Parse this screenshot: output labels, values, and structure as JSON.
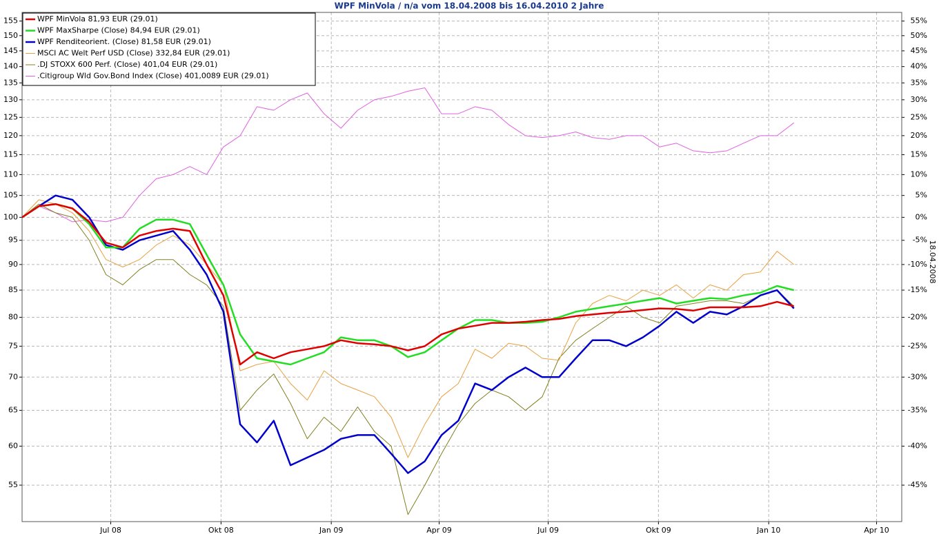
{
  "chart_data": {
    "type": "line",
    "title": "WPF MinVola / n/a vom 18.04.2008 bis 16.04.2010 2 Jahre",
    "y2label": "18.04.2008",
    "ylog": true,
    "grid": true,
    "legend": "upper left",
    "xlim": [
      0,
      734
    ],
    "xticks": [
      {
        "value": 74,
        "label": "Jul 08"
      },
      {
        "value": 166,
        "label": "Okt 08"
      },
      {
        "value": 258,
        "label": "Jan 09"
      },
      {
        "value": 348,
        "label": "Apr 09"
      },
      {
        "value": 439,
        "label": "Jul 09"
      },
      {
        "value": 531,
        "label": "Okt 09"
      },
      {
        "value": 623,
        "label": "Jan 10"
      },
      {
        "value": 713,
        "label": "Apr 10"
      }
    ],
    "ylim": [
      50.7,
      158
    ],
    "yticks": [
      55,
      60,
      65,
      70,
      75,
      80,
      85,
      90,
      95,
      100,
      105,
      110,
      115,
      120,
      125,
      130,
      135,
      140,
      145,
      150,
      155
    ],
    "y2lim": [
      -49.3,
      58
    ],
    "y2ticks": [
      {
        "value": -45,
        "label": "-45%"
      },
      {
        "value": -40,
        "label": "-40%"
      },
      {
        "value": -35,
        "label": "-35%"
      },
      {
        "value": -30,
        "label": "-30%"
      },
      {
        "value": -25,
        "label": "-25%"
      },
      {
        "value": -20,
        "label": "-20%"
      },
      {
        "value": -15,
        "label": "-15%"
      },
      {
        "value": -10,
        "label": "-10%"
      },
      {
        "value": -5,
        "label": "-5%"
      },
      {
        "value": 0,
        "label": "0%"
      },
      {
        "value": 5,
        "label": "5%"
      },
      {
        "value": 10,
        "label": "10%"
      },
      {
        "value": 15,
        "label": "15%"
      },
      {
        "value": 20,
        "label": "20%"
      },
      {
        "value": 25,
        "label": "25%"
      },
      {
        "value": 30,
        "label": "30%"
      },
      {
        "value": 35,
        "label": "35%"
      },
      {
        "value": 40,
        "label": "40%"
      },
      {
        "value": 45,
        "label": "45%"
      },
      {
        "value": 50,
        "label": "50%"
      },
      {
        "value": 55,
        "label": "55%"
      }
    ],
    "x": [
      0,
      14,
      28,
      42,
      56,
      70,
      84,
      98,
      112,
      126,
      140,
      154,
      168,
      182,
      196,
      210,
      224,
      238,
      252,
      266,
      280,
      294,
      308,
      322,
      336,
      350,
      364,
      378,
      392,
      406,
      420,
      434,
      448,
      462,
      476,
      490,
      504,
      518,
      532,
      546,
      560,
      574,
      588,
      602,
      616,
      630,
      644
    ],
    "series": [
      {
        "name": "WPF MinVola 81,93 EUR (29.01)",
        "color": "#e00000",
        "width": 2.5,
        "values": [
          100,
          102.5,
          103,
          102,
          99,
          94.5,
          93.5,
          96,
          97,
          97.5,
          97,
          90,
          84,
          72,
          74,
          73,
          74,
          74.5,
          75,
          76,
          75.5,
          75.3,
          75,
          74.3,
          75,
          77,
          78,
          78.5,
          79,
          79,
          79.2,
          79.5,
          79.7,
          80.2,
          80.5,
          80.8,
          81,
          81.3,
          81.6,
          81.5,
          81.2,
          81.8,
          81.8,
          81.8,
          82,
          82.8,
          82
        ]
      },
      {
        "name": "WPF MaxSharpe (Close) 84,94 EUR (29.01)",
        "color": "#22dd22",
        "width": 2.5,
        "values": [
          100,
          102.5,
          103,
          102,
          98.5,
          93.5,
          93.5,
          97.5,
          99.5,
          99.5,
          98.5,
          92,
          86,
          77,
          73,
          72.5,
          72,
          73,
          74,
          76.5,
          76,
          76,
          75,
          73.2,
          74,
          76,
          78,
          79.5,
          79.5,
          79,
          79,
          79.2,
          80,
          81,
          81.5,
          82,
          82.5,
          83,
          83.5,
          82.5,
          83,
          83.5,
          83.3,
          84,
          84.5,
          85.8,
          85
        ]
      },
      {
        "name": "WPF Renditeorient. (Close) 81,58 EUR (29.01)",
        "color": "#0000cc",
        "width": 2.5,
        "values": [
          100,
          102.5,
          105,
          104,
          100,
          94,
          93,
          95,
          96,
          97,
          93,
          88,
          81,
          63,
          60.5,
          63.5,
          57.5,
          58.5,
          59.5,
          61,
          61.5,
          61.5,
          59,
          56.5,
          58,
          61.5,
          63.5,
          69,
          68,
          70,
          71.5,
          70,
          70,
          73,
          76,
          76,
          75,
          76.5,
          78.5,
          81,
          79,
          81,
          80.5,
          82,
          84,
          85,
          81.6
        ]
      },
      {
        "name": "MSCI AC Welt Perf USD (Close) 332,84 EUR (29.01)",
        "color": "#e8a040",
        "width": 1,
        "values": [
          100,
          104,
          103,
          101,
          97,
          91,
          89.5,
          91,
          94,
          96,
          94,
          90,
          86,
          71,
          72,
          72.5,
          69,
          66.5,
          71,
          69,
          68,
          67,
          64,
          58.5,
          63,
          67,
          69,
          74.5,
          73,
          75.5,
          75,
          73,
          72.7,
          79,
          82.5,
          84,
          83,
          85,
          84,
          86,
          83.5,
          86,
          85,
          88,
          88.5,
          92.7,
          90
        ]
      },
      {
        "name": ".DJ STOXX 600 Perf. (Close) 401,04 EUR (29.01)",
        "color": "#808020",
        "width": 1,
        "values": [
          100,
          103,
          101,
          100,
          95,
          88,
          86,
          89,
          91,
          91,
          88,
          86,
          82,
          65,
          68,
          70.5,
          66,
          61,
          64,
          62,
          65.5,
          62,
          60,
          51.5,
          55,
          59,
          63,
          66,
          68,
          67,
          65,
          67,
          73,
          76,
          78,
          80,
          82,
          80,
          79,
          82,
          82.5,
          83,
          83,
          82.5,
          84,
          85,
          82
        ]
      },
      {
        "name": ".Citigroup Wld Gov.Bond Index (Close) 401,0089 EUR (29.01)",
        "color": "#e060e0",
        "width": 1,
        "values": [
          100,
          102.5,
          101,
          99,
          99.5,
          99,
          100,
          105,
          109,
          110,
          112,
          110,
          117,
          120,
          128,
          127,
          130,
          132,
          126,
          122,
          127,
          130,
          131,
          132.5,
          133.5,
          126,
          126,
          128,
          127,
          123,
          120,
          119.5,
          120,
          121,
          119.5,
          119,
          120,
          120,
          117,
          118,
          116,
          115.5,
          116,
          118,
          120,
          120,
          123.5
        ]
      }
    ]
  }
}
